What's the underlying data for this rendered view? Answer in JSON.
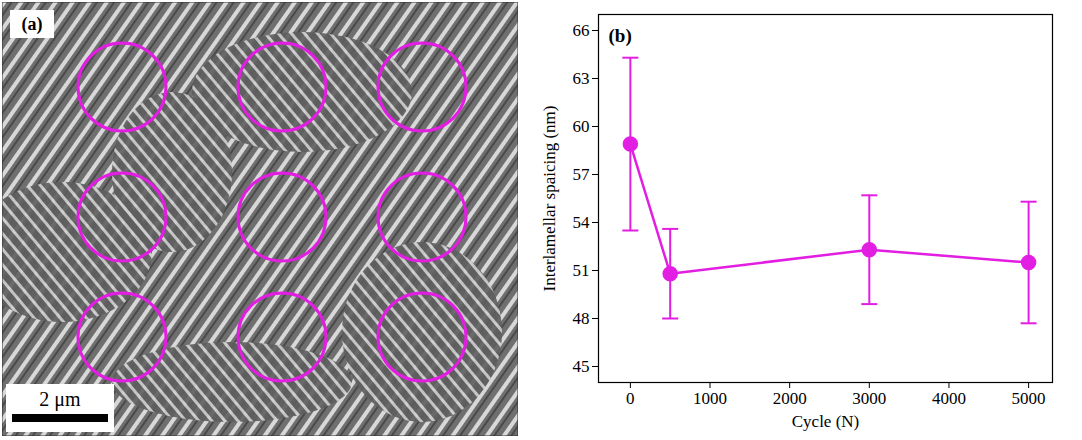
{
  "chart_data": {
    "type": "line",
    "panel_label": "(b)",
    "x": [
      0,
      500,
      3000,
      5000
    ],
    "values": [
      58.9,
      50.8,
      52.3,
      51.5
    ],
    "errors": [
      5.4,
      2.8,
      3.4,
      3.8
    ],
    "color": "#e31ee3",
    "marker": "circle",
    "xlabel": "Cycle (N)",
    "ylabel": "Interlamellar spaicing (nm)",
    "xlim": [
      -400,
      5300
    ],
    "ylim": [
      44,
      67
    ],
    "xticks": [
      0,
      1000,
      2000,
      3000,
      4000,
      5000
    ],
    "yticks": [
      45,
      48,
      51,
      54,
      57,
      60,
      63,
      66
    ]
  },
  "micrograph": {
    "panel_label": "(a)",
    "scale_bar": "2 μm"
  }
}
